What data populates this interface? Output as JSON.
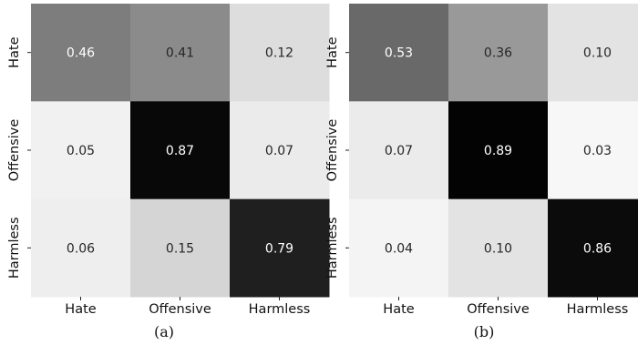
{
  "chart_data": [
    {
      "type": "heatmap",
      "caption": "(a)",
      "x_categories": [
        "Hate",
        "Offensive",
        "Harmless"
      ],
      "y_categories": [
        "Hate",
        "Offensive",
        "Harmless"
      ],
      "values": [
        [
          0.46,
          0.41,
          0.12
        ],
        [
          0.05,
          0.87,
          0.07
        ],
        [
          0.06,
          0.15,
          0.79
        ]
      ],
      "colormap": "grayscale, higher value darker",
      "value_range": [
        0,
        0.9
      ]
    },
    {
      "type": "heatmap",
      "caption": "(b)",
      "x_categories": [
        "Hate",
        "Offensive",
        "Harmless"
      ],
      "y_categories": [
        "Hate",
        "Offensive",
        "Harmless"
      ],
      "values": [
        [
          0.53,
          0.36,
          0.1
        ],
        [
          0.07,
          0.89,
          0.03
        ],
        [
          0.04,
          0.1,
          0.86
        ]
      ],
      "colormap": "grayscale, higher value darker",
      "value_range": [
        0,
        0.9
      ]
    }
  ]
}
